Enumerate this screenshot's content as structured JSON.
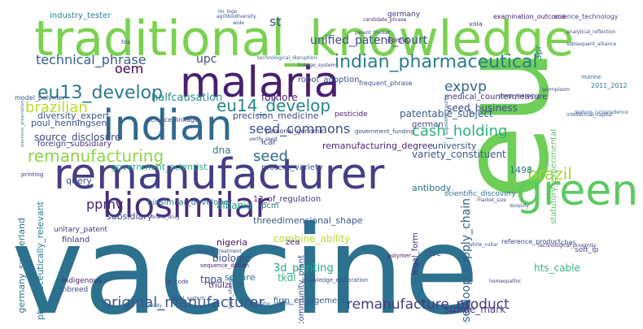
{
  "words": [
    {
      "text": "vaccine",
      "color": "#2c718e",
      "rot": 0
    },
    {
      "text": "eu",
      "color": "#6ece58",
      "rot": -90
    },
    {
      "text": "traditional_knowledge",
      "color": "#7ad151",
      "rot": 0
    },
    {
      "text": "remanufacturer",
      "color": "#433e85",
      "rot": 0
    },
    {
      "text": "malaria",
      "color": "#481f70",
      "rot": 0
    },
    {
      "text": "indian",
      "color": "#31688e",
      "rot": 0
    },
    {
      "text": "biosimilar",
      "color": "#472c7a",
      "rot": 0
    },
    {
      "text": "green",
      "color": "#5ec962",
      "rot": 0
    },
    {
      "text": "remanufacturing",
      "color": "#8bd646",
      "rot": 0
    },
    {
      "text": "closedloop_supply_chain",
      "color": "#34608d",
      "rot": -90
    },
    {
      "text": "indian_pharmaceutical",
      "color": "#287c8e",
      "rot": 0
    },
    {
      "text": "eu13_develop",
      "color": "#2a788e",
      "rot": 0
    },
    {
      "text": "eu14_develop",
      "color": "#25858e",
      "rot": 0
    },
    {
      "text": "technical_phrase",
      "color": "#355f8d",
      "rot": 0
    },
    {
      "text": "unified_patent_court",
      "color": "#3d4d8a",
      "rot": 0
    },
    {
      "text": "seed_commons",
      "color": "#3b518b",
      "rot": 0
    },
    {
      "text": "cash_holding",
      "color": "#2db27d",
      "rot": 0
    },
    {
      "text": "original_manufacturer",
      "color": "#39568c",
      "rot": 0
    },
    {
      "text": "remanufacture_product",
      "color": "#443a83",
      "rot": 0
    },
    {
      "text": "brazilian",
      "color": "#b8de29",
      "rot": 0
    },
    {
      "text": "expvp",
      "color": "#33638d",
      "rot": 0
    },
    {
      "text": "brazil",
      "color": "#a2da37",
      "rot": 0
    },
    {
      "text": "oem",
      "color": "#440154",
      "rot": 0
    },
    {
      "text": "upc",
      "color": "#3e4989",
      "rot": 0
    },
    {
      "text": "st",
      "color": "#3b528b",
      "rot": 0
    },
    {
      "text": "ppmv",
      "color": "#482173",
      "rot": 0
    },
    {
      "text": "halfcausation",
      "color": "#228c8d",
      "rot": 0
    },
    {
      "text": "precision_medicine",
      "color": "#3e4a89",
      "rot": 0
    },
    {
      "text": "industry_tester",
      "color": "#26828e",
      "rot": 0
    },
    {
      "text": "diversity_expert",
      "color": "#3a548c",
      "rot": 0
    },
    {
      "text": "medical_countermeasure",
      "color": "#46337f",
      "rot": 0
    },
    {
      "text": "poul_henningsen",
      "color": "#3d4e8a",
      "rot": 0
    },
    {
      "text": "source_disclosure",
      "color": "#414487",
      "rot": 0
    },
    {
      "text": "folklore",
      "color": "#482576",
      "rot": 0
    },
    {
      "text": "seed_business",
      "color": "#3f4889",
      "rot": 0
    },
    {
      "text": "patentable_subject",
      "color": "#355e8d",
      "rot": 0
    },
    {
      "text": "foreign_subsidiary",
      "color": "#453781",
      "rot": 0
    },
    {
      "text": "robot_adoption",
      "color": "#3c4f8a",
      "rot": 0
    },
    {
      "text": "remanufacturing_degree",
      "color": "#482677",
      "rot": 0
    },
    {
      "text": "variety_constituent",
      "color": "#38588c",
      "rot": 0
    },
    {
      "text": "university",
      "color": "#3b528b",
      "rot": 0
    },
    {
      "text": "german",
      "color": "#404588",
      "rot": 0
    },
    {
      "text": "seed",
      "color": "#2f6c8e",
      "rot": 0
    },
    {
      "text": "pcm",
      "color": "#31688e",
      "rot": 0
    },
    {
      "text": "query",
      "color": "#3e4989",
      "rot": 0
    },
    {
      "text": "biosimilar_developer",
      "color": "#2a768e",
      "rot": 0
    },
    {
      "text": "albania",
      "color": "#20a386",
      "rot": 0
    },
    {
      "text": "13_of_regulation",
      "color": "#46307e",
      "rot": 0
    },
    {
      "text": "threedimensional_shape",
      "color": "#375a8c",
      "rot": 0
    },
    {
      "text": "germany_switzerland",
      "color": "#2e6f8e",
      "rot": -90
    },
    {
      "text": "pharmaceutically_relevant",
      "color": "#2a788e",
      "rot": -90
    },
    {
      "text": "subsidiary",
      "color": "#3d4d8a",
      "rot": 0
    },
    {
      "text": "nigeria",
      "color": "#471063",
      "rot": 0
    },
    {
      "text": "biologic",
      "color": "#3e4989",
      "rot": 0
    },
    {
      "text": "combine_ability",
      "color": "#b5de2b",
      "rot": 0
    },
    {
      "text": "3d_printing",
      "color": "#22a884",
      "rot": 0
    },
    {
      "text": "tppa",
      "color": "#3f4788",
      "rot": 0
    },
    {
      "text": "tkdl",
      "color": "#31b57b",
      "rot": 0
    },
    {
      "text": "firm_engagement",
      "color": "#365c8d",
      "rot": 0
    },
    {
      "text": "strade_mark",
      "color": "#433e85",
      "rot": 0
    },
    {
      "text": "hts_cable",
      "color": "#35b779",
      "rot": 0
    },
    {
      "text": "clsc",
      "color": "#3a548c",
      "rot": 0
    },
    {
      "text": "legal_form",
      "color": "#482979",
      "rot": -90
    },
    {
      "text": "statutory_experimental",
      "color": "#5ec962",
      "rot": -90
    },
    {
      "text": "antibody",
      "color": "#2d708e",
      "rot": 0
    },
    {
      "text": "scientific_discovery",
      "color": "#2e6e8e",
      "rot": 0
    },
    {
      "text": "community_plant",
      "color": "#3d4d8a",
      "rot": -90
    },
    {
      "text": "topic_change",
      "color": "#453882",
      "rot": -90
    },
    {
      "text": "zea",
      "color": "#482475",
      "rot": 0
    },
    {
      "text": "square",
      "color": "#2c728e",
      "rot": 0
    },
    {
      "text": "1498",
      "color": "#2a788e",
      "rot": 0
    },
    {
      "text": "3pr",
      "color": "#27808e",
      "rot": -90
    },
    {
      "text": "dna",
      "color": "#2a788e",
      "rot": 0
    },
    {
      "text": "finland",
      "color": "#46337f",
      "rot": 0
    },
    {
      "text": "icar",
      "color": "#3f4788",
      "rot": 0
    },
    {
      "text": "triulzi",
      "color": "#482576",
      "rot": 0
    },
    {
      "text": "qr_code",
      "color": "#453781",
      "rot": 0
    },
    {
      "text": "indigenous",
      "color": "#482173",
      "rot": 0
    },
    {
      "text": "inbreed",
      "color": "#3e4989",
      "rot": 0
    },
    {
      "text": "reference_product",
      "color": "#3f4788",
      "rot": 0
    },
    {
      "text": "mature_jurisprudence",
      "color": "#2f6b8e",
      "rot": 0
    },
    {
      "text": "intellectual_capital",
      "color": "#3b528b",
      "rot": 0
    },
    {
      "text": "deep_learning",
      "color": "#3d4e8a",
      "rot": 0
    },
    {
      "text": "germplasm",
      "color": "#404588",
      "rot": 0
    },
    {
      "text": "science_technology",
      "color": "#3e4989",
      "rot": 0
    },
    {
      "text": "examination_outcome",
      "color": "#48186a",
      "rot": 0
    },
    {
      "text": "technological_disruption",
      "color": "#31688e",
      "rot": 0
    },
    {
      "text": "agrobiodiversity",
      "color": "#3b528b",
      "rot": 0
    },
    {
      "text": "candidate_phrase",
      "color": "#482878",
      "rot": 0
    },
    {
      "text": "germany",
      "color": "#46327e",
      "rot": 0
    },
    {
      "text": "marine",
      "color": "#2d708e",
      "rot": 0
    },
    {
      "text": "ppmvs",
      "color": "#482475",
      "rot": 0
    },
    {
      "text": "government_scientist",
      "color": "#27ad81",
      "rot": 0
    },
    {
      "text": "protect_variety",
      "color": "#3e4a89",
      "rot": 0
    },
    {
      "text": "model_polymer",
      "color": "#3b528b",
      "rot": 0
    },
    {
      "text": "pesticide",
      "color": "#482677",
      "rot": 0
    },
    {
      "text": "science_linkage",
      "color": "#3f4788",
      "rot": 0
    },
    {
      "text": "linkage_system",
      "color": "#414487",
      "rot": 0
    },
    {
      "text": "patent_thicket",
      "color": "#3d4d8a",
      "rot": 0
    },
    {
      "text": "frequent_phrase",
      "color": "#3b528b",
      "rot": 0
    },
    {
      "text": "supreme_courts",
      "color": "#2c718e",
      "rot": -90
    },
    {
      "text": "government_funding",
      "color": "#3e4989",
      "rot": 0
    },
    {
      "text": "personal_genomic",
      "color": "#46337f",
      "rot": 0
    },
    {
      "text": "verify_seed",
      "color": "#3f4788",
      "rot": 0
    },
    {
      "text": "electronic_prescription",
      "color": "#2c728e",
      "rot": -90
    },
    {
      "text": "analytical_reflection",
      "color": "#3e4a89",
      "rot": 0
    },
    {
      "text": "subsequent_alliance",
      "color": "#3b528b",
      "rot": 0
    },
    {
      "text": "unitary_patent",
      "color": "#46337f",
      "rot": 0
    },
    {
      "text": "sequence_datum",
      "color": "#482475",
      "rot": 0
    },
    {
      "text": "knowledge_exploration",
      "color": "#3d4e8a",
      "rot": 0
    },
    {
      "text": "fda",
      "color": "#404588",
      "rot": 0
    },
    {
      "text": "lm_logo",
      "color": "#3b528b",
      "rot": 0
    },
    {
      "text": "2011_2012",
      "color": "#2a788e",
      "rot": 0
    },
    {
      "text": "homeopathic",
      "color": "#453882",
      "rot": 0
    },
    {
      "text": "market_size",
      "color": "#3e4989",
      "rot": 0
    },
    {
      "text": "white_collar",
      "color": "#3b528b",
      "rot": 0
    },
    {
      "text": "technological_proximity",
      "color": "#46337f",
      "rot": 0
    },
    {
      "text": "soft_ip",
      "color": "#3f4788",
      "rot": 0
    },
    {
      "text": "cbas",
      "color": "#3d4d8a",
      "rot": 0
    },
    {
      "text": "polymer",
      "color": "#48186a",
      "rot": 0
    },
    {
      "text": "malaria_treatment",
      "color": "#404588",
      "rot": 0
    },
    {
      "text": "indicator_uoform",
      "color": "#3b528b",
      "rot": 0
    },
    {
      "text": "legal_system",
      "color": "#3e4a89",
      "rot": 0
    },
    {
      "text": "subsidy",
      "color": "#2c718e",
      "rot": 0
    },
    {
      "text": "brand_drug",
      "color": "#453781",
      "rot": 0
    },
    {
      "text": "printing",
      "color": "#46337f",
      "rot": 0
    },
    {
      "text": "duopoly",
      "color": "#3d4d8a",
      "rot": 0
    },
    {
      "text": "vola",
      "color": "#3f4788",
      "rot": 0
    },
    {
      "text": "wide",
      "color": "#3b528b",
      "rot": 0
    }
  ]
}
